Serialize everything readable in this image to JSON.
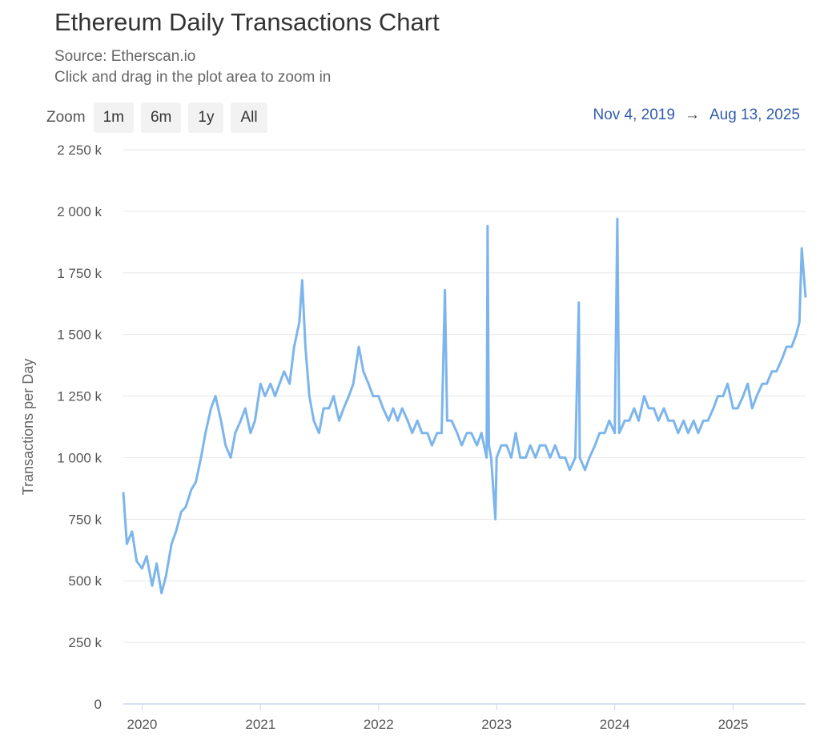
{
  "header": {
    "title": "Ethereum Daily Transactions Chart",
    "source": "Source: Etherscan.io",
    "hint": "Click and drag in the plot area to zoom in"
  },
  "zoom": {
    "label": "Zoom",
    "buttons": [
      "1m",
      "6m",
      "1y",
      "All"
    ]
  },
  "range": {
    "from": "Nov 4, 2019",
    "arrow": "→",
    "to": "Aug 13, 2025"
  },
  "colors": {
    "line": "#7cb5ec",
    "grid": "#e6e6e6",
    "axis": "#ccd6eb",
    "range_text": "#335cad"
  },
  "chart_data": {
    "type": "line",
    "title": "Ethereum Daily Transactions Chart",
    "subtitle": "Source: Etherscan.io",
    "xlabel": "",
    "ylabel": "Transactions per Day",
    "ylim": [
      0,
      2250000
    ],
    "yticks": [
      0,
      250000,
      500000,
      750000,
      1000000,
      1250000,
      1500000,
      1750000,
      2000000,
      2250000
    ],
    "ytick_labels": [
      "0",
      "250 k",
      "500 k",
      "750 k",
      "1 000 k",
      "1 250 k",
      "1 500 k",
      "1 750 k",
      "2 000 k",
      "2 250 k"
    ],
    "xlim": [
      "2019-11-04",
      "2025-08-13"
    ],
    "xtick_labels": [
      "2020",
      "2021",
      "2022",
      "2023",
      "2024",
      "2025"
    ],
    "grid": true,
    "series": [
      {
        "name": "",
        "x": [
          "2019-11-04",
          "2019-11-15",
          "2019-12-01",
          "2019-12-15",
          "2020-01-01",
          "2020-01-15",
          "2020-02-01",
          "2020-02-15",
          "2020-03-01",
          "2020-03-15",
          "2020-04-01",
          "2020-04-15",
          "2020-05-01",
          "2020-05-15",
          "2020-06-01",
          "2020-06-15",
          "2020-07-01",
          "2020-07-15",
          "2020-08-01",
          "2020-08-15",
          "2020-09-01",
          "2020-09-15",
          "2020-10-01",
          "2020-10-15",
          "2020-11-01",
          "2020-11-15",
          "2020-12-01",
          "2020-12-15",
          "2021-01-01",
          "2021-01-15",
          "2021-02-01",
          "2021-02-15",
          "2021-03-01",
          "2021-03-15",
          "2021-04-01",
          "2021-04-15",
          "2021-05-01",
          "2021-05-10",
          "2021-05-20",
          "2021-06-01",
          "2021-06-15",
          "2021-07-01",
          "2021-07-15",
          "2021-08-01",
          "2021-08-15",
          "2021-09-01",
          "2021-09-15",
          "2021-10-01",
          "2021-10-15",
          "2021-11-01",
          "2021-11-15",
          "2021-12-01",
          "2021-12-15",
          "2022-01-01",
          "2022-01-15",
          "2022-02-01",
          "2022-02-15",
          "2022-03-01",
          "2022-03-15",
          "2022-04-01",
          "2022-04-15",
          "2022-05-01",
          "2022-05-15",
          "2022-06-01",
          "2022-06-15",
          "2022-07-01",
          "2022-07-15",
          "2022-07-25",
          "2022-08-01",
          "2022-08-15",
          "2022-09-01",
          "2022-09-15",
          "2022-10-01",
          "2022-10-15",
          "2022-11-01",
          "2022-11-15",
          "2022-12-01",
          "2022-12-04",
          "2022-12-08",
          "2022-12-15",
          "2022-12-28",
          "2023-01-01",
          "2023-01-15",
          "2023-02-01",
          "2023-02-15",
          "2023-03-01",
          "2023-03-15",
          "2023-04-01",
          "2023-04-15",
          "2023-05-01",
          "2023-05-15",
          "2023-06-01",
          "2023-06-15",
          "2023-07-01",
          "2023-07-15",
          "2023-08-01",
          "2023-08-15",
          "2023-09-01",
          "2023-09-12",
          "2023-09-15",
          "2023-10-01",
          "2023-10-15",
          "2023-11-01",
          "2023-11-15",
          "2023-12-01",
          "2023-12-15",
          "2024-01-01",
          "2024-01-09",
          "2024-01-15",
          "2024-02-01",
          "2024-02-15",
          "2024-03-01",
          "2024-03-15",
          "2024-04-01",
          "2024-04-15",
          "2024-05-01",
          "2024-05-15",
          "2024-06-01",
          "2024-06-15",
          "2024-07-01",
          "2024-07-15",
          "2024-08-01",
          "2024-08-15",
          "2024-09-01",
          "2024-09-15",
          "2024-10-01",
          "2024-10-15",
          "2024-11-01",
          "2024-11-15",
          "2024-12-01",
          "2024-12-15",
          "2025-01-01",
          "2025-01-15",
          "2025-02-01",
          "2025-02-15",
          "2025-03-01",
          "2025-03-15",
          "2025-04-01",
          "2025-04-15",
          "2025-05-01",
          "2025-05-15",
          "2025-06-01",
          "2025-06-15",
          "2025-07-01",
          "2025-07-15",
          "2025-07-25",
          "2025-08-01",
          "2025-08-13"
        ],
        "y": [
          860000,
          650000,
          700000,
          580000,
          550000,
          600000,
          480000,
          570000,
          450000,
          520000,
          650000,
          700000,
          780000,
          800000,
          870000,
          900000,
          1000000,
          1100000,
          1200000,
          1250000,
          1150000,
          1050000,
          1000000,
          1100000,
          1150000,
          1200000,
          1100000,
          1150000,
          1300000,
          1250000,
          1300000,
          1250000,
          1300000,
          1350000,
          1300000,
          1450000,
          1550000,
          1720000,
          1450000,
          1250000,
          1150000,
          1100000,
          1200000,
          1200000,
          1250000,
          1150000,
          1200000,
          1250000,
          1300000,
          1450000,
          1350000,
          1300000,
          1250000,
          1250000,
          1200000,
          1150000,
          1200000,
          1150000,
          1200000,
          1150000,
          1100000,
          1150000,
          1100000,
          1100000,
          1050000,
          1100000,
          1100000,
          1680000,
          1150000,
          1150000,
          1100000,
          1050000,
          1100000,
          1100000,
          1050000,
          1100000,
          1000000,
          1940000,
          1050000,
          1000000,
          750000,
          1000000,
          1050000,
          1050000,
          1000000,
          1100000,
          1000000,
          1000000,
          1050000,
          1000000,
          1050000,
          1050000,
          1000000,
          1050000,
          1000000,
          1000000,
          950000,
          1000000,
          1630000,
          1000000,
          950000,
          1000000,
          1050000,
          1100000,
          1100000,
          1150000,
          1100000,
          1970000,
          1100000,
          1150000,
          1150000,
          1200000,
          1150000,
          1250000,
          1200000,
          1200000,
          1150000,
          1200000,
          1150000,
          1150000,
          1100000,
          1150000,
          1100000,
          1150000,
          1100000,
          1150000,
          1150000,
          1200000,
          1250000,
          1250000,
          1300000,
          1200000,
          1200000,
          1250000,
          1300000,
          1200000,
          1250000,
          1300000,
          1300000,
          1350000,
          1350000,
          1400000,
          1450000,
          1450000,
          1500000,
          1550000,
          1850000,
          1650000
        ]
      }
    ]
  }
}
